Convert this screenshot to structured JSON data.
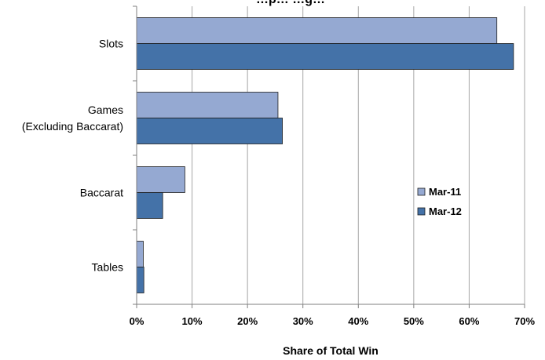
{
  "chart_data": {
    "type": "bar",
    "orientation": "horizontal",
    "title": "…p…  …g…",
    "xlabel": "Share of Total Win",
    "ylabel": "",
    "categories": [
      [
        "Slots"
      ],
      [
        "Games",
        "(Excluding Baccarat)"
      ],
      [
        "Baccarat"
      ],
      [
        "Tables"
      ]
    ],
    "series": [
      {
        "name": "Mar-11",
        "color": "#95a9d2",
        "values": [
          65,
          25.5,
          8.7,
          1.2
        ]
      },
      {
        "name": "Mar-12",
        "color": "#4472a8",
        "values": [
          68,
          26.3,
          4.7,
          1.3
        ]
      }
    ],
    "xlim": [
      0,
      70
    ],
    "xticks": [
      0,
      10,
      20,
      30,
      40,
      50,
      60,
      70
    ],
    "tick_format": "percent",
    "grid": true,
    "legend_position": "right"
  }
}
